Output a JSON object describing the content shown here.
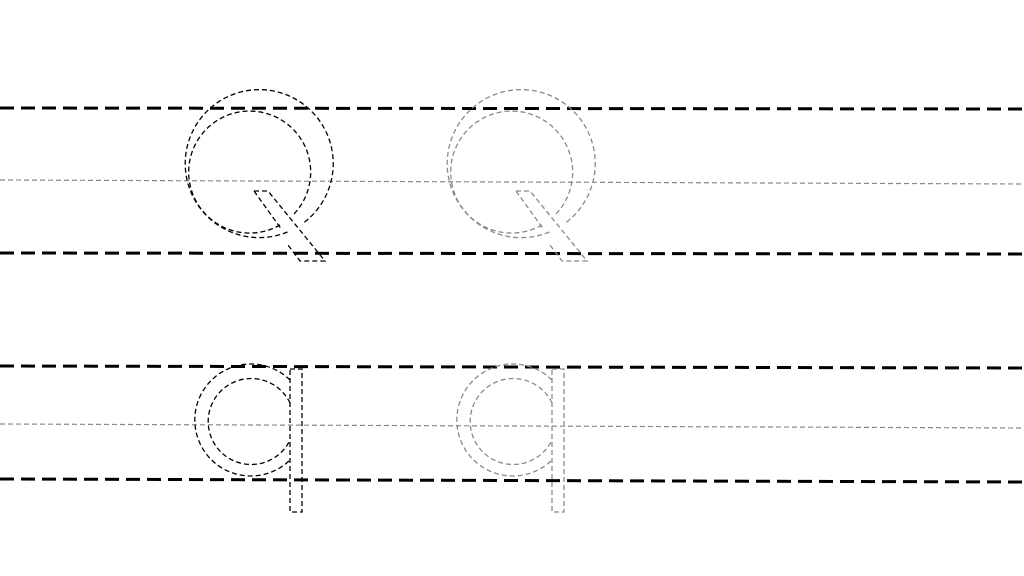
{
  "worksheet": {
    "rows": [
      {
        "letter": "Q",
        "case": "uppercase",
        "examples": [
          "dark",
          "light"
        ]
      },
      {
        "letter": "q",
        "case": "lowercase",
        "examples": [
          "dark",
          "light"
        ]
      }
    ]
  },
  "colors": {
    "background": "#ffffff",
    "guide_line": "#000000",
    "midline": "#8a8a8a",
    "letter_dark": "#000000",
    "letter_light": "#8a8a8a"
  }
}
